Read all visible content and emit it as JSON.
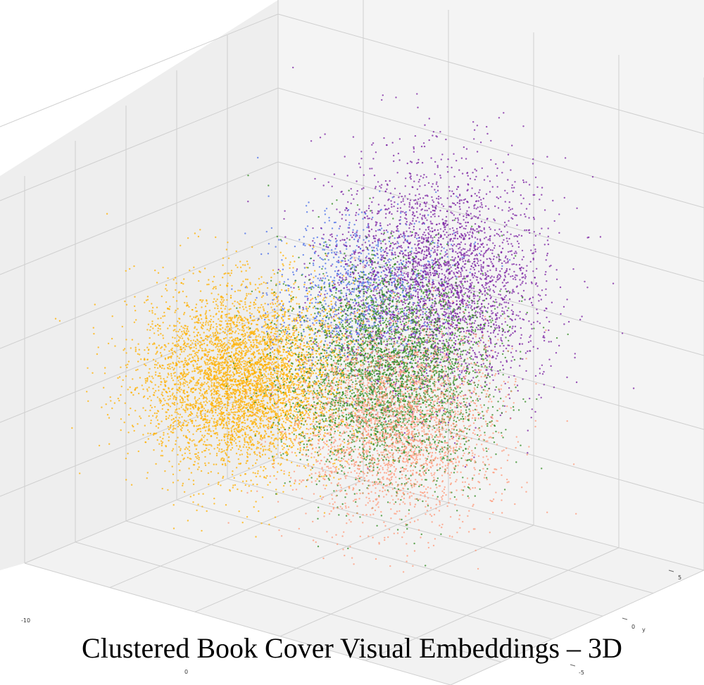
{
  "chart_data": {
    "type": "scatter",
    "title": "Clustered Book Cover Visual Embeddings – 3D",
    "projection": "3d",
    "grid": true,
    "pane_color": "#f2f2f2",
    "grid_color": "#cfcfcf",
    "axes": {
      "x": {
        "label": "",
        "ticks": [
          "-10",
          "0"
        ]
      },
      "y": {
        "label": "y",
        "ticks": [
          "5",
          "0",
          "-5"
        ]
      },
      "z": {
        "label": "",
        "ticks": []
      }
    },
    "series": [
      {
        "color": "#ffb000",
        "points_approx": 14000,
        "center": [
          -9,
          1,
          2
        ],
        "spread": [
          3.0,
          2.0,
          2.2
        ]
      },
      {
        "color": "#4a6ee8",
        "points_approx": 3000,
        "center": [
          -2,
          2,
          6
        ],
        "spread": [
          2.5,
          2.0,
          1.8
        ]
      },
      {
        "color": "#7a1fa2",
        "points_approx": 9000,
        "center": [
          3,
          2,
          6
        ],
        "spread": [
          3.0,
          2.5,
          2.8
        ]
      },
      {
        "color": "#2d8a1e",
        "points_approx": 10000,
        "center": [
          1,
          0,
          1
        ],
        "spread": [
          3.0,
          2.2,
          2.6
        ]
      },
      {
        "color": "#ff9a7a",
        "points_approx": 8000,
        "center": [
          2,
          -1,
          -2
        ],
        "spread": [
          3.0,
          2.2,
          2.4
        ]
      }
    ]
  }
}
